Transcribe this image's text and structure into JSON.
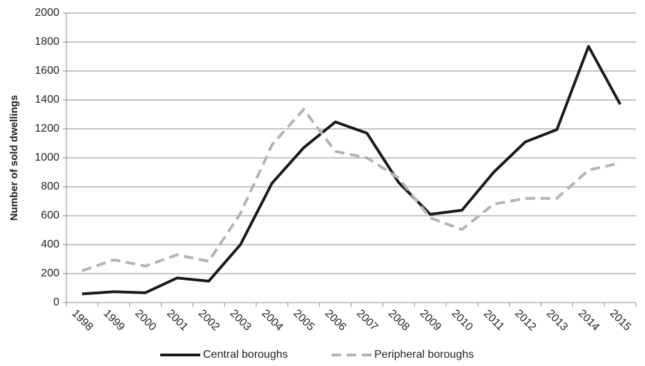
{
  "chart_data": {
    "type": "line",
    "y_label": "Number of sold dwellings",
    "categories": [
      "1998",
      "1999",
      "2000",
      "2001",
      "2002",
      "2003",
      "2004",
      "2005",
      "2006",
      "2007",
      "2008",
      "2009",
      "2010",
      "2011",
      "2012",
      "2013",
      "2014",
      "2015"
    ],
    "series": [
      {
        "name": "Central boroughs",
        "color": "#1a1a1a",
        "dash": false,
        "values": [
          60,
          75,
          68,
          170,
          148,
          400,
          825,
          1070,
          1248,
          1170,
          830,
          610,
          638,
          900,
          1110,
          1195,
          1770,
          1370
        ]
      },
      {
        "name": "Peripheral boroughs",
        "color": "#b3b3b3",
        "dash": true,
        "values": [
          220,
          295,
          252,
          330,
          285,
          615,
          1090,
          1335,
          1045,
          1000,
          860,
          585,
          505,
          680,
          720,
          720,
          915,
          965
        ]
      }
    ],
    "ylim": [
      0,
      2000
    ],
    "yticks": [
      0,
      200,
      400,
      600,
      800,
      1000,
      1200,
      1400,
      1600,
      1800,
      2000
    ],
    "grid": true
  }
}
